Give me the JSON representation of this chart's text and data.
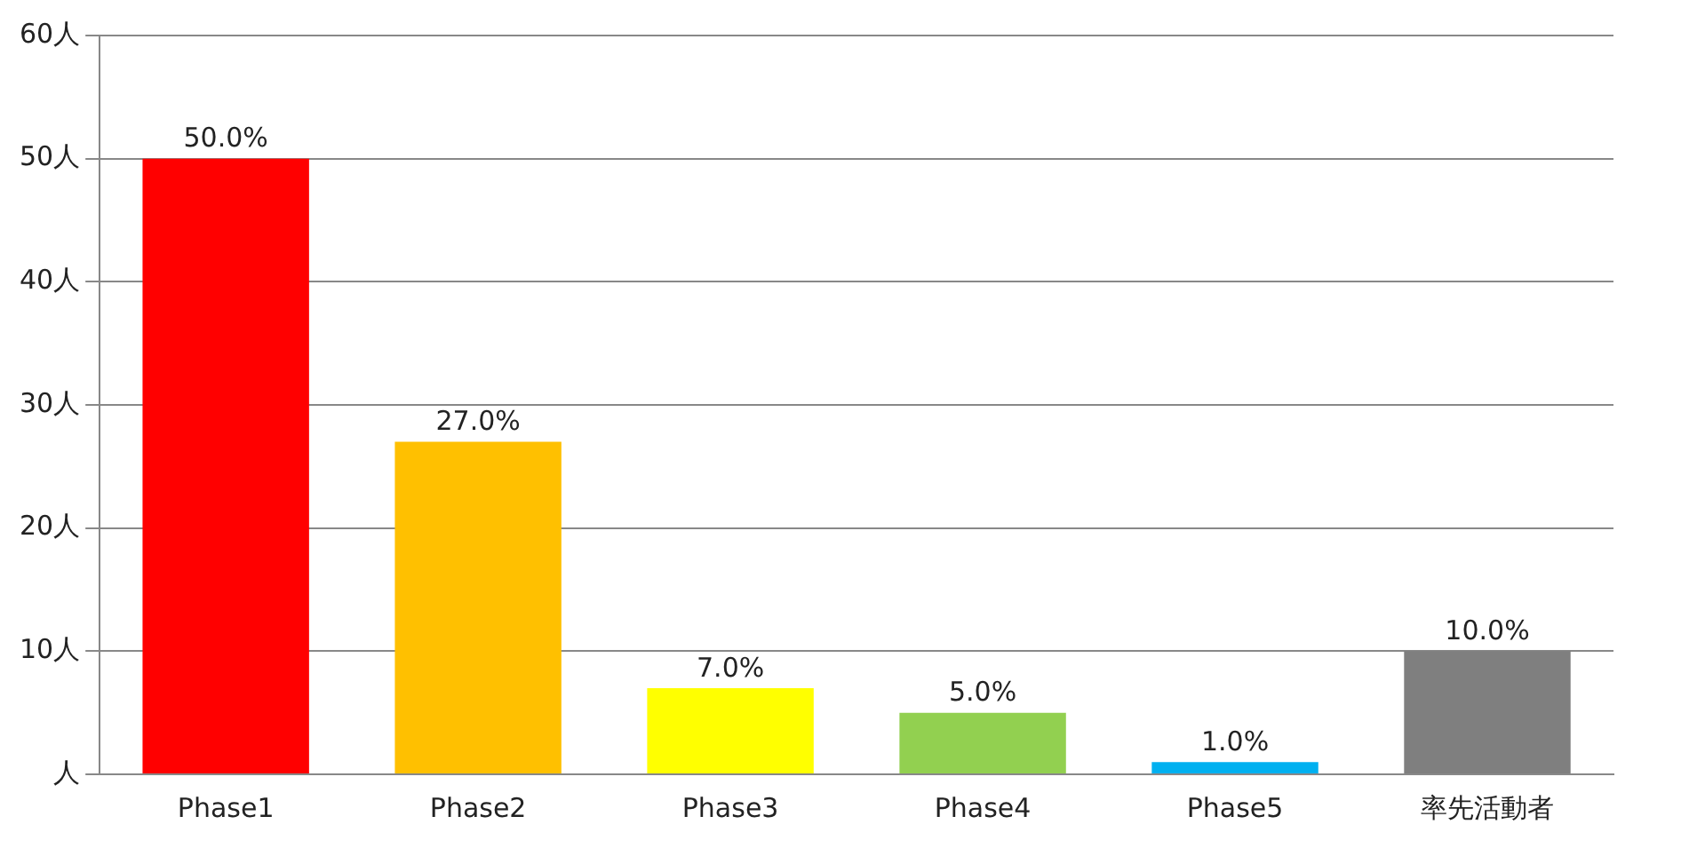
{
  "chart_data": {
    "type": "bar",
    "categories": [
      "Phase1",
      "Phase2",
      "Phase3",
      "Phase4",
      "Phase5",
      "率先活動者"
    ],
    "values": [
      50,
      27,
      7,
      5,
      1,
      10
    ],
    "colors": [
      "#ff0000",
      "#ffc000",
      "#ffff00",
      "#92d050",
      "#00b0f0",
      "#7f7f7f"
    ],
    "value_labels": [
      "50.0%",
      "27.0%",
      "7.0%",
      "5.0%",
      "1.0%",
      "10.0%"
    ],
    "ylim": [
      0,
      60
    ],
    "yticks": [
      {
        "value": 0,
        "label": "人"
      },
      {
        "value": 10,
        "label": "10人"
      },
      {
        "value": 20,
        "label": "20人"
      },
      {
        "value": 30,
        "label": "30人"
      },
      {
        "value": 40,
        "label": "40人"
      },
      {
        "value": 50,
        "label": "50人"
      },
      {
        "value": 60,
        "label": "60人"
      }
    ],
    "grid": "y"
  }
}
